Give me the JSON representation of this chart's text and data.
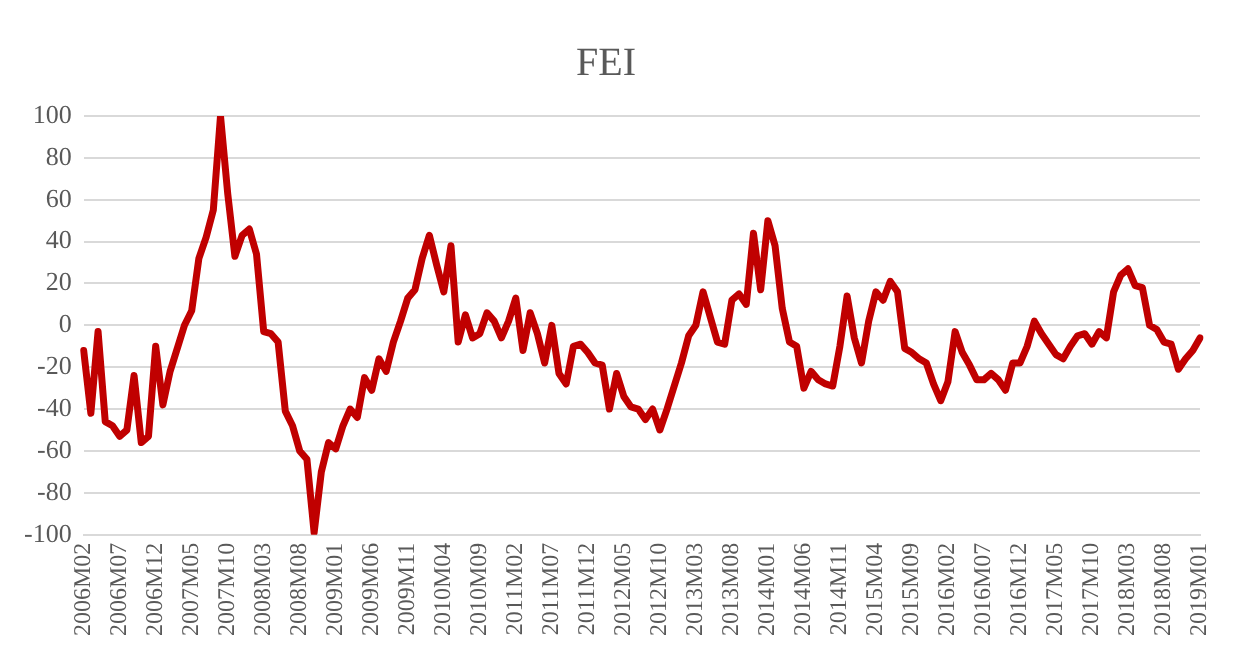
{
  "chart_data": {
    "type": "line",
    "title": "FEI",
    "categories": [
      "2006M02",
      null,
      null,
      null,
      null,
      "2006M07",
      null,
      null,
      null,
      null,
      "2006M12",
      null,
      null,
      null,
      null,
      "2007M05",
      null,
      null,
      null,
      null,
      "2007M10",
      null,
      null,
      null,
      null,
      "2008M03",
      null,
      null,
      null,
      null,
      "2008M08",
      null,
      null,
      null,
      null,
      "2009M01",
      null,
      null,
      null,
      null,
      "2009M06",
      null,
      null,
      null,
      null,
      "2009M11",
      null,
      null,
      null,
      null,
      "2010M04",
      null,
      null,
      null,
      null,
      "2010M09",
      null,
      null,
      null,
      null,
      "2011M02",
      null,
      null,
      null,
      null,
      "2011M07",
      null,
      null,
      null,
      null,
      "2011M12",
      null,
      null,
      null,
      null,
      "2012M05",
      null,
      null,
      null,
      null,
      "2012M10",
      null,
      null,
      null,
      null,
      "2013M03",
      null,
      null,
      null,
      null,
      "2013M08",
      null,
      null,
      null,
      null,
      "2014M01",
      null,
      null,
      null,
      null,
      "2014M06",
      null,
      null,
      null,
      null,
      "2014M11",
      null,
      null,
      null,
      null,
      "2015M04",
      null,
      null,
      null,
      null,
      "2015M09",
      null,
      null,
      null,
      null,
      "2016M02",
      null,
      null,
      null,
      null,
      "2016M07",
      null,
      null,
      null,
      null,
      "2016M12",
      null,
      null,
      null,
      null,
      "2017M05",
      null,
      null,
      null,
      null,
      "2017M10",
      null,
      null,
      null,
      null,
      "2018M03",
      null,
      null,
      null,
      null,
      "2018M08",
      null,
      null,
      null,
      null,
      "2019M01"
    ],
    "series": [
      {
        "color": "#c00000",
        "values": [
          -12,
          -42,
          -3,
          -46,
          -48,
          -53,
          -50,
          -24,
          -56,
          -53,
          -10,
          -38,
          -22,
          -11,
          0,
          7,
          32,
          42,
          55,
          100,
          63,
          33,
          43,
          46,
          34,
          -3,
          -4,
          -8,
          -41,
          -48,
          -60,
          -64,
          -99,
          -70,
          -56,
          -59,
          -48,
          -40,
          -44,
          -25,
          -31,
          -16,
          -22,
          -8,
          2,
          13,
          17,
          32,
          43,
          29,
          16,
          38,
          -8,
          5,
          -6,
          -4,
          6,
          2,
          -6,
          2,
          13,
          -12,
          6,
          -4,
          -18,
          0,
          -23,
          -28,
          -10,
          -9,
          -13,
          -18,
          -19,
          -40,
          -23,
          -34,
          -39,
          -40,
          -45,
          -40,
          -50,
          -40,
          -29,
          -18,
          -5,
          0,
          16,
          4,
          -8,
          -9,
          12,
          15,
          10,
          44,
          17,
          50,
          38,
          8,
          -8,
          -10,
          -30,
          -22,
          -26,
          -28,
          -29,
          -10,
          14,
          -6,
          -18,
          2,
          16,
          12,
          21,
          16,
          -11,
          -13,
          -16,
          -18,
          -28,
          -36,
          -27,
          -3,
          -13,
          -19,
          -26,
          -26,
          -23,
          -26,
          -31,
          -18,
          -18,
          -10,
          2,
          -4,
          -9,
          -14,
          -16,
          -10,
          -5,
          -4,
          -9,
          -3,
          -6,
          16,
          24,
          27,
          19,
          18,
          0,
          -2,
          -8,
          -9,
          -21,
          -16,
          -12,
          -6
        ]
      }
    ],
    "ylim": [
      -100,
      100
    ],
    "yticks": [
      -100,
      -80,
      -60,
      -40,
      -20,
      0,
      20,
      40,
      60,
      80,
      100
    ],
    "grid": "y",
    "legend": false,
    "marker": "none",
    "line_style": "solid"
  }
}
